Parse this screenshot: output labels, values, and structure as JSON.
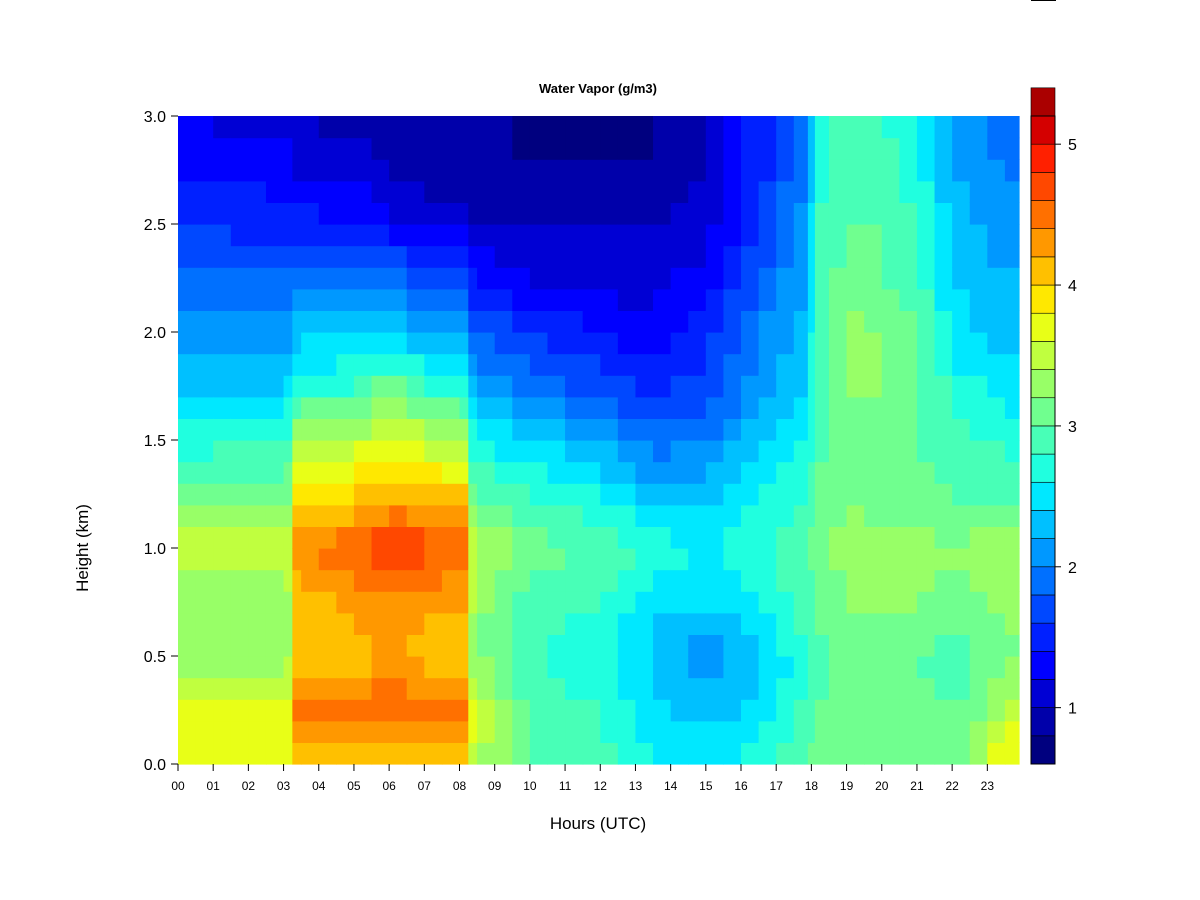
{
  "chart_data": {
    "type": "heatmap",
    "title": "Water Vapor (g/m3)",
    "xlabel": "Hours (UTC)",
    "ylabel": "Height (km)",
    "x_ticks": [
      "00",
      "01",
      "02",
      "03",
      "04",
      "05",
      "06",
      "07",
      "08",
      "09",
      "10",
      "11",
      "12",
      "13",
      "14",
      "15",
      "16",
      "17",
      "18",
      "19",
      "20",
      "21",
      "22",
      "23"
    ],
    "y_ticks": [
      "0.0",
      "0.5",
      "1.0",
      "1.5",
      "2.0",
      "2.5",
      "3.0"
    ],
    "xlim": [
      0,
      23.9
    ],
    "ylim": [
      0,
      3.0
    ],
    "colorbar": {
      "range": [
        0.6,
        5.2
      ],
      "step": 0.2,
      "ticks": [
        "1",
        "2",
        "3",
        "4",
        "5"
      ],
      "colors": [
        "#00007F",
        "#0000AA",
        "#0000D4",
        "#0000FF",
        "#0020FF",
        "#0048FF",
        "#0070FF",
        "#0098FF",
        "#00C0FF",
        "#00E8FF",
        "#20FFDF",
        "#48FFB7",
        "#70FF8F",
        "#98FF67",
        "#C0FF3F",
        "#E8FF17",
        "#FFE800",
        "#FFC000",
        "#FF9800",
        "#FF7000",
        "#FF4800",
        "#FF2000",
        "#D40000",
        "#AA0000"
      ]
    },
    "hours": [
      0,
      0.5,
      1,
      1.5,
      2,
      2.5,
      3,
      3.25,
      3.5,
      4,
      4.5,
      5,
      5.5,
      6,
      6.5,
      7,
      7.5,
      8,
      8.25,
      8.5,
      9,
      9.5,
      10,
      10.5,
      11,
      11.5,
      12,
      12.5,
      13,
      13.5,
      14,
      14.5,
      15,
      15.5,
      16,
      16.5,
      17,
      17.5,
      17.9,
      18.1,
      18.5,
      19,
      19.5,
      20,
      20.5,
      21,
      21.5,
      22,
      22.5,
      23,
      23.5,
      23.9
    ],
    "heights": [
      0,
      0.1,
      0.2,
      0.3,
      0.4,
      0.5,
      0.6,
      0.7,
      0.8,
      0.9,
      1.0,
      1.1,
      1.2,
      1.3,
      1.4,
      1.5,
      1.6,
      1.7,
      1.8,
      1.9,
      2.0,
      2.1,
      2.2,
      2.3,
      2.4,
      2.5,
      2.6,
      2.7,
      2.8,
      2.9,
      3.0
    ],
    "profiles": {
      "hour_keys": [
        0,
        3.1,
        3.3,
        5.2,
        6.0,
        7.0,
        8.2,
        8.4,
        9.2,
        10,
        12,
        13.5,
        15,
        16.5,
        17.9,
        18.1,
        19,
        20,
        21,
        22,
        22.8,
        23.3,
        23.9
      ],
      "height_keys": [
        0,
        0.25,
        0.5,
        0.75,
        1.0,
        1.25,
        1.5,
        1.75,
        2.0,
        2.25,
        2.5,
        2.75,
        3.0
      ],
      "values": [
        [
          3.6,
          3.6,
          3.3,
          3.3,
          3.5,
          3.1,
          2.7,
          2.4,
          2.1,
          1.8,
          1.6,
          1.4,
          1.2
        ],
        [
          3.6,
          3.6,
          3.3,
          3.3,
          3.5,
          3.1,
          2.8,
          2.4,
          2.1,
          1.8,
          1.5,
          1.3,
          1.1
        ],
        [
          3.9,
          4.4,
          4.0,
          4.1,
          4.3,
          3.8,
          3.4,
          2.7,
          2.3,
          1.9,
          1.5,
          1.2,
          1.0
        ],
        [
          4.0,
          4.5,
          4.1,
          4.3,
          4.6,
          4.0,
          3.5,
          2.8,
          2.4,
          2.0,
          1.4,
          1.1,
          0.9
        ],
        [
          4.1,
          4.6,
          4.2,
          4.4,
          4.8,
          4.2,
          3.7,
          3.1,
          2.5,
          2.0,
          1.3,
          1.0,
          0.8
        ],
        [
          4.0,
          4.5,
          4.1,
          4.3,
          4.7,
          4.1,
          3.5,
          2.8,
          2.2,
          1.7,
          1.1,
          0.9,
          0.8
        ],
        [
          3.9,
          4.4,
          4.0,
          4.2,
          4.5,
          4.0,
          3.4,
          2.7,
          2.1,
          1.6,
          1.1,
          0.9,
          0.8
        ],
        [
          3.5,
          3.7,
          3.2,
          3.3,
          3.4,
          3.0,
          2.6,
          2.2,
          1.8,
          1.4,
          1.0,
          0.9,
          0.8
        ],
        [
          3.2,
          3.3,
          3.1,
          3.1,
          3.3,
          3.0,
          2.5,
          2.1,
          1.7,
          1.3,
          1.0,
          0.9,
          0.8
        ],
        [
          3.0,
          2.9,
          2.8,
          2.9,
          3.1,
          2.8,
          2.4,
          1.9,
          1.6,
          1.2,
          1.0,
          0.8,
          0.7
        ],
        [
          2.9,
          2.8,
          2.7,
          2.8,
          3.0,
          2.6,
          2.2,
          1.7,
          1.4,
          1.1,
          1.0,
          0.8,
          0.7
        ],
        [
          2.6,
          2.5,
          2.3,
          2.5,
          2.7,
          2.3,
          1.9,
          1.5,
          1.3,
          1.1,
          1.0,
          0.8,
          0.8
        ],
        [
          2.5,
          2.3,
          2.1,
          2.4,
          2.6,
          2.3,
          2.0,
          1.7,
          1.5,
          1.3,
          1.1,
          1.0,
          1.0
        ],
        [
          2.7,
          2.5,
          2.3,
          2.6,
          2.8,
          2.6,
          2.3,
          2.1,
          2.0,
          1.8,
          1.6,
          1.5,
          1.5
        ],
        [
          3.0,
          2.9,
          2.8,
          2.9,
          3.0,
          2.8,
          2.6,
          2.4,
          2.3,
          2.2,
          2.1,
          2.0,
          2.0
        ],
        [
          3.1,
          3.0,
          2.9,
          3.0,
          3.1,
          3.0,
          2.9,
          2.9,
          2.9,
          2.8,
          2.8,
          2.7,
          2.7
        ],
        [
          3.2,
          3.1,
          3.1,
          3.2,
          3.3,
          3.2,
          3.1,
          3.2,
          3.3,
          3.1,
          3.0,
          3.0,
          2.9
        ],
        [
          3.2,
          3.2,
          3.1,
          3.2,
          3.3,
          3.1,
          3.1,
          3.2,
          3.2,
          3.0,
          3.0,
          2.9,
          2.8
        ],
        [
          3.2,
          3.1,
          3.0,
          3.2,
          3.3,
          3.1,
          3.0,
          3.1,
          3.0,
          2.9,
          2.8,
          2.7,
          2.6
        ],
        [
          3.1,
          3.0,
          2.9,
          3.1,
          3.2,
          3.0,
          2.9,
          2.7,
          2.5,
          2.4,
          2.3,
          2.2,
          2.2
        ],
        [
          3.4,
          3.1,
          3.0,
          3.2,
          3.3,
          3.0,
          2.8,
          2.6,
          2.4,
          2.3,
          2.2,
          2.1,
          2.1
        ],
        [
          3.7,
          3.4,
          3.1,
          3.2,
          3.4,
          3.0,
          2.8,
          2.5,
          2.3,
          2.2,
          2.1,
          2.0,
          1.8
        ],
        [
          3.8,
          3.6,
          3.2,
          3.3,
          3.4,
          3.0,
          2.7,
          2.5,
          2.3,
          2.2,
          2.1,
          2.0,
          1.9
        ]
      ]
    }
  }
}
